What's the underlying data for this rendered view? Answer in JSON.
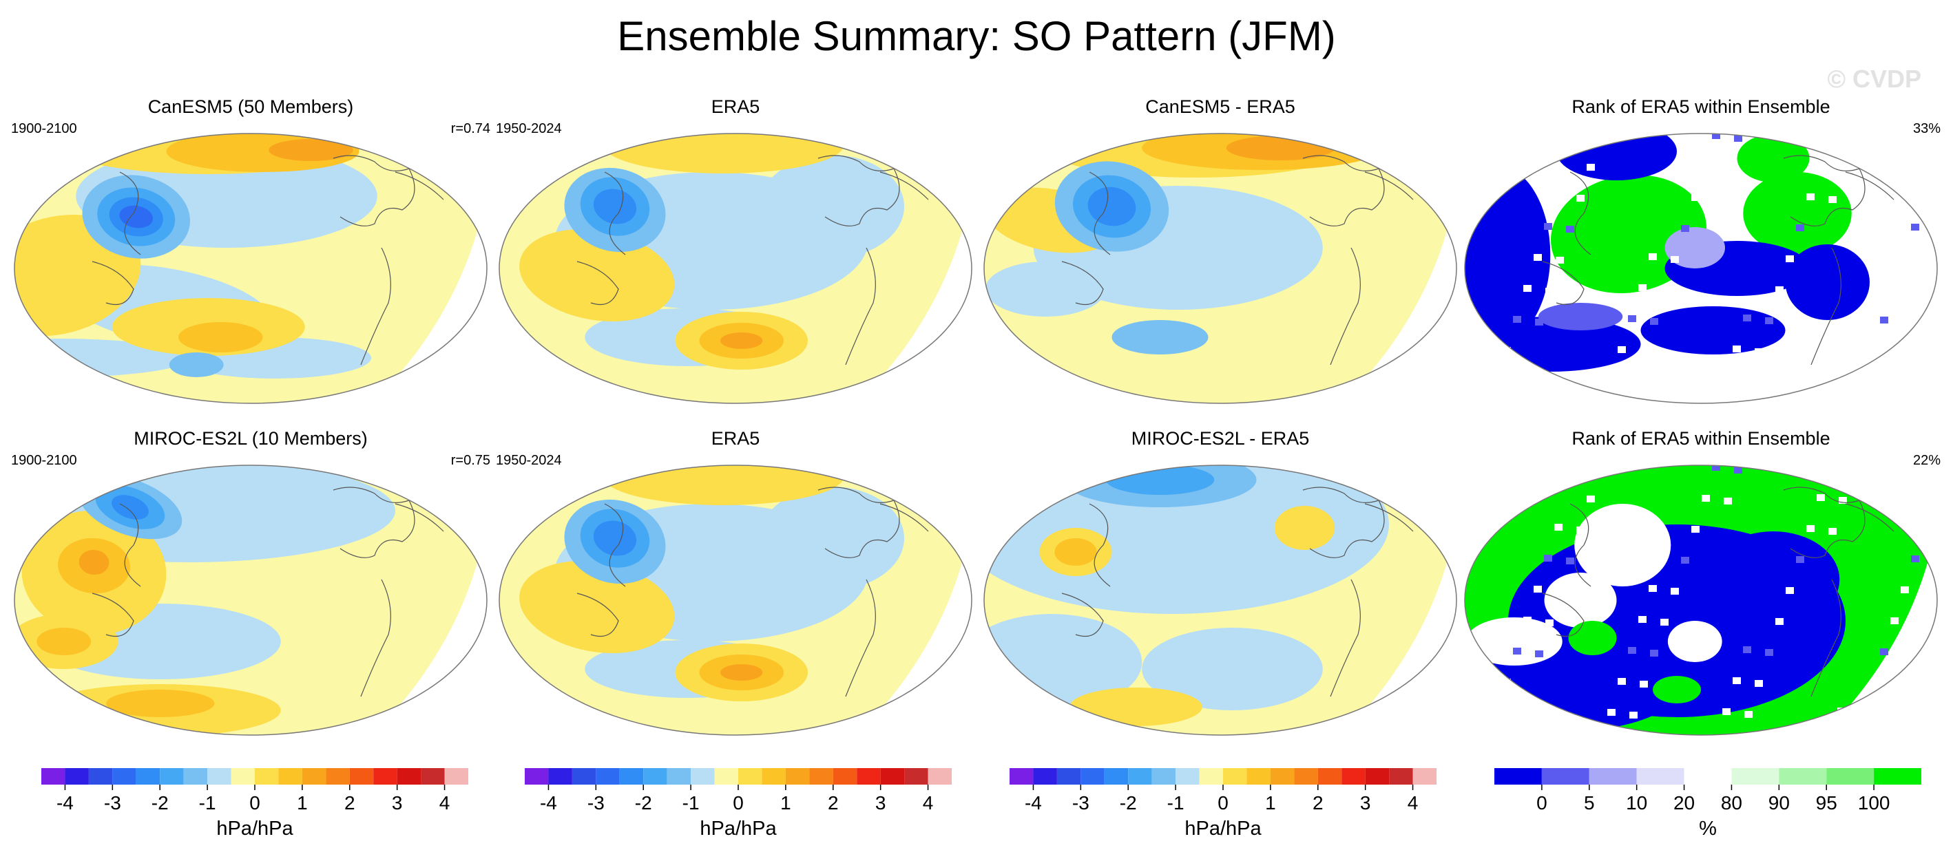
{
  "title": "Ensemble Summary: SO Pattern (JFM)",
  "watermark": "© CVDP",
  "panels": [
    {
      "title": "CanESM5 (50 Members)",
      "left": "1900-2100",
      "right": "r=0.74",
      "kind": "pattern",
      "variant": 1
    },
    {
      "title": "ERA5",
      "left": "1950-2024",
      "right": "",
      "kind": "pattern",
      "variant": 2
    },
    {
      "title": "CanESM5 - ERA5",
      "left": "",
      "right": "",
      "kind": "pattern",
      "variant": 3
    },
    {
      "title": "Rank of ERA5 within Ensemble",
      "left": "",
      "right": "33%",
      "kind": "rank",
      "variant": 1
    },
    {
      "title": "MIROC-ES2L (10 Members)",
      "left": "1900-2100",
      "right": "r=0.75",
      "kind": "pattern",
      "variant": 4
    },
    {
      "title": "ERA5",
      "left": "1950-2024",
      "right": "",
      "kind": "pattern",
      "variant": 2
    },
    {
      "title": "MIROC-ES2L - ERA5",
      "left": "",
      "right": "",
      "kind": "pattern",
      "variant": 5
    },
    {
      "title": "Rank of ERA5 within Ensemble",
      "left": "",
      "right": "22%",
      "kind": "rank",
      "variant": 2
    }
  ],
  "colorbars": [
    {
      "label": "hPa/hPa",
      "ticks": [
        "-4",
        "-3",
        "-2",
        "-1",
        "0",
        "1",
        "2",
        "3",
        "4"
      ]
    },
    {
      "label": "hPa/hPa",
      "ticks": [
        "-4",
        "-3",
        "-2",
        "-1",
        "0",
        "1",
        "2",
        "3",
        "4"
      ]
    },
    {
      "label": "hPa/hPa",
      "ticks": [
        "-4",
        "-3",
        "-2",
        "-1",
        "0",
        "1",
        "2",
        "3",
        "4"
      ]
    },
    {
      "label": "%",
      "ticks": [
        "0",
        "5",
        "10",
        "20",
        "80",
        "90",
        "95",
        "100"
      ]
    }
  ],
  "colors": {
    "pattern_scale": [
      "#7a1fe6",
      "#2f1ee6",
      "#2e4fe6",
      "#2d6cf2",
      "#2f8df5",
      "#45a8f5",
      "#78bff2",
      "#b7def5",
      "#fbf8a8",
      "#fcdd4a",
      "#fbc326",
      "#f9a41d",
      "#f78218",
      "#f45a14",
      "#ef2615",
      "#d61412",
      "#c72b2b",
      "#f4b5b5"
    ],
    "rank_scale": [
      "#0000e6",
      "#5b5bf0",
      "#a8a8f6",
      "#dedefb",
      "#ffffff",
      "#dcfadc",
      "#a9f5a9",
      "#78f078",
      "#00ee00"
    ]
  }
}
